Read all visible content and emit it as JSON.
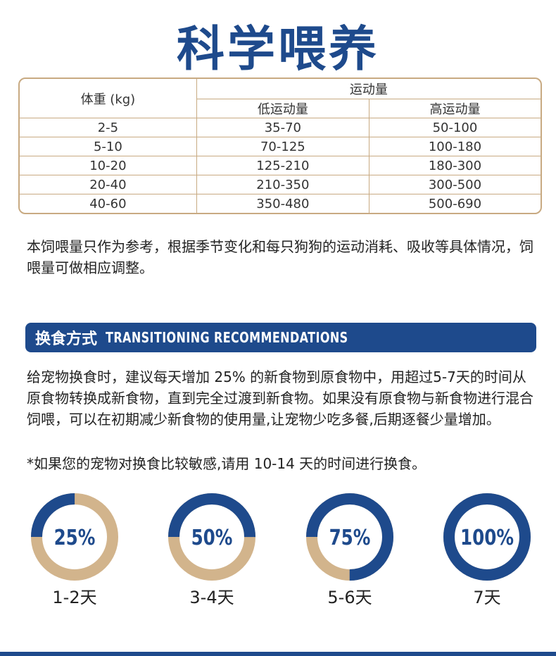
{
  "title": "科学喂养",
  "table": {
    "header": {
      "weight": "体重 (kg)",
      "activity": "运动量",
      "low": "低运动量",
      "high": "高运动量"
    },
    "rows": [
      [
        "2-5",
        "35-70",
        "50-100"
      ],
      [
        "5-10",
        "70-125",
        "100-180"
      ],
      [
        "10-20",
        "125-210",
        "180-300"
      ],
      [
        "20-40",
        "210-350",
        "300-500"
      ],
      [
        "40-60",
        "350-480",
        "500-690"
      ]
    ]
  },
  "note": "本饲喂量只作为参考，根据季节变化和每只狗狗的运动消耗、吸收等具体情况，饲喂量可做相应调整。",
  "section": {
    "title": "换食方式",
    "subtitle": "TRANSITIONING RECOMMENDATIONS"
  },
  "paragraph": "给宠物换食时，建议每天增加 25% 的新食物到原食物中，用超过5-7天的时间从原食物转换成新食物，直到完全过渡到新食物。如果没有原食物与新食物进行混合饲喂，可以在初期减少新食物的使用量,让宠物少吃多餐,后期逐餐少量增加。",
  "footnote": "*如果您的宠物对换食比较敏感,请用 10-14 天的时间进行换食。",
  "steps": [
    {
      "value": 25,
      "label": "25%",
      "period": "1-2天"
    },
    {
      "value": 50,
      "label": "50%",
      "period": "3-4天"
    },
    {
      "value": 75,
      "label": "75%",
      "period": "5-6天"
    },
    {
      "value": 100,
      "label": "100%",
      "period": "7天"
    }
  ]
}
